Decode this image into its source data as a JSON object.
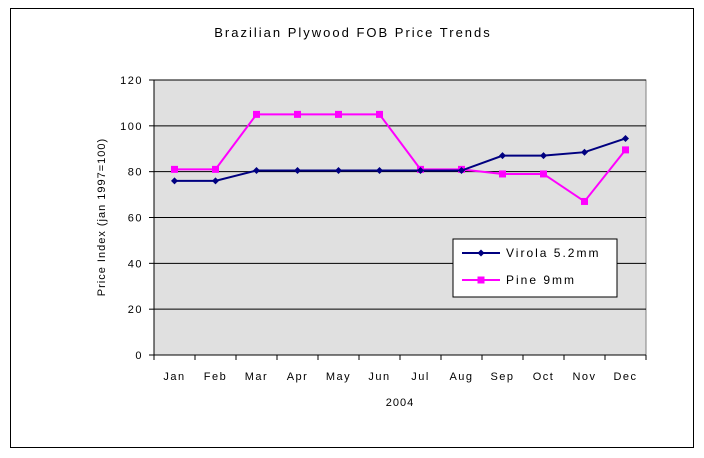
{
  "chart_data": {
    "type": "line",
    "title": "Brazilian Plywood FOB Price Trends",
    "xlabel": "2004",
    "ylabel": "Price Index (jan 1997=100)",
    "categories": [
      "Jan",
      "Feb",
      "Mar",
      "Apr",
      "May",
      "Jun",
      "Jul",
      "Aug",
      "Sep",
      "Oct",
      "Nov",
      "Dec"
    ],
    "y_ticks": [
      "0",
      "20",
      "40",
      "60",
      "80",
      "100",
      "120"
    ],
    "ylim": [
      0,
      120
    ],
    "grid": true,
    "legend_position": "lower-right",
    "plot_background": "#e0e0e0",
    "series": [
      {
        "name": "Virola 5.2mm",
        "color": "#000080",
        "marker": "diamond",
        "values": [
          76,
          76,
          80.5,
          80.5,
          80.5,
          80.5,
          80.5,
          80.5,
          87,
          87,
          88.5,
          94.5
        ]
      },
      {
        "name": "Pine 9mm",
        "color": "#ff00ff",
        "marker": "square",
        "values": [
          81,
          81,
          105,
          105,
          105,
          105,
          81,
          81,
          79,
          79,
          67,
          89.5
        ]
      }
    ]
  }
}
